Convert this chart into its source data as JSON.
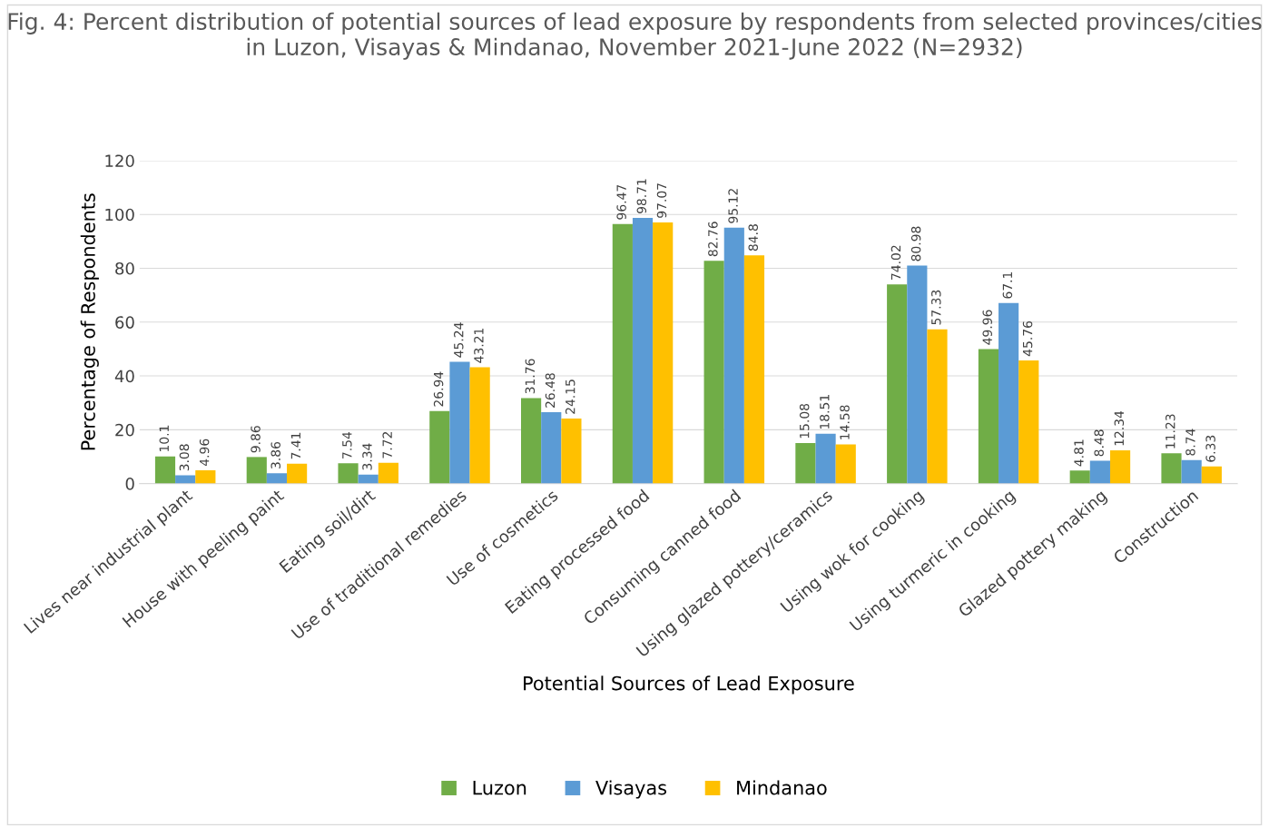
{
  "chart_data": {
    "type": "bar",
    "title": "Fig. 4: Percent distribution of potential sources of lead exposure by respondents from selected provinces/cities in Luzon, Visayas & Mindanao, November 2021-June 2022 (N=2932)",
    "xlabel": "Potential Sources of Lead Exposure",
    "ylabel": "Percentage of Respondents",
    "categories": [
      "Lives near industrial plant",
      "House with peeling paint",
      "Eating soil/dirt",
      "Use of traditional remedies",
      "Use of cosmetics",
      "Eating processed food",
      "Consuming canned food",
      "Using glazed pottery/ceramics",
      "Using wok for cooking",
      "Using turmeric in cooking",
      "Glazed pottery making",
      "Construction"
    ],
    "series": [
      {
        "name": "Luzon",
        "color": "#70ad47",
        "values": [
          10.1,
          9.86,
          7.54,
          26.94,
          31.76,
          96.47,
          82.76,
          15.08,
          74.02,
          49.96,
          4.81,
          11.23
        ]
      },
      {
        "name": "Visayas",
        "color": "#5b9bd5",
        "values": [
          3.08,
          3.86,
          3.34,
          45.24,
          26.48,
          98.71,
          95.12,
          18.51,
          80.98,
          67.1,
          8.48,
          8.74
        ]
      },
      {
        "name": "Mindanao",
        "color": "#ffc000",
        "values": [
          4.96,
          7.41,
          7.72,
          43.21,
          24.15,
          97.07,
          84.8,
          14.58,
          57.33,
          45.76,
          12.34,
          6.33
        ]
      }
    ],
    "ylim": [
      0,
      120
    ],
    "yticks": [
      0,
      20,
      40,
      60,
      80,
      100,
      120
    ],
    "grid": "y",
    "legend": "bottom",
    "data_labels": true
  }
}
